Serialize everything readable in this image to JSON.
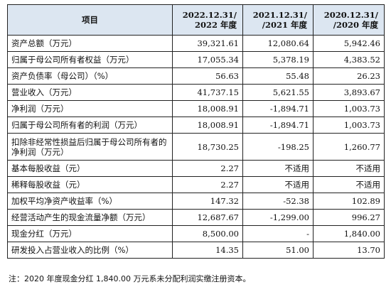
{
  "header": {
    "item": "项目",
    "col1_line1": "2022.12.31/",
    "col1_line2": "2022 年度",
    "col2_line1": "2021.12.31/",
    "col2_line2": "/2021 年度",
    "col3_line1": "2020.12.31/",
    "col3_line2": "/2020 年度"
  },
  "rows": [
    {
      "label": "资产总额（万元）",
      "v2022": "39,321.61",
      "v2021": "12,080.64",
      "v2020": "5,942.46"
    },
    {
      "label": "归属于母公司所有者权益（万元）",
      "v2022": "17,055.34",
      "v2021": "5,378.19",
      "v2020": "4,383.52"
    },
    {
      "label": "资产负债率（母公司）（%）",
      "v2022": "56.63",
      "v2021": "55.48",
      "v2020": "26.23"
    },
    {
      "label": "营业收入（万元）",
      "v2022": "41,737.15",
      "v2021": "5,621.55",
      "v2020": "3,893.67"
    },
    {
      "label": "净利润（万元）",
      "v2022": "18,008.91",
      "v2021": "-1,894.71",
      "v2020": "1,003.73"
    },
    {
      "label": "归属于母公司所有者的利润（万元）",
      "v2022": "18,008.91",
      "v2021": "-1,894.71",
      "v2020": "1,003.73"
    },
    {
      "label": "扣除非经常性损益后归属于母公司所有者的净利润（万元）",
      "v2022": "18,730.25",
      "v2021": "-198.25",
      "v2020": "1,260.77"
    },
    {
      "label": "基本每股收益（元）",
      "v2022": "2.27",
      "v2021": "不适用",
      "v2020": "不适用"
    },
    {
      "label": "稀释每股收益（元）",
      "v2022": "2.27",
      "v2021": "不适用",
      "v2020": "不适用"
    },
    {
      "label": "加权平均净资产收益率（%）",
      "v2022": "147.32",
      "v2021": "-52.38",
      "v2020": "102.89"
    },
    {
      "label": "经营活动产生的现金流量净额（万元）",
      "v2022": "12,687.67",
      "v2021": "-1,299.00",
      "v2020": "996.27"
    },
    {
      "label": "现金分红（万元）",
      "v2022": "8,500.00",
      "v2021": "-",
      "v2020": "1,840.00"
    },
    {
      "label": "研发投入占营业收入的比例（%）",
      "v2022": "14.35",
      "v2021": "51.00",
      "v2020": "13.70"
    }
  ],
  "note": "注：2020 年度现金分红 1,840.00 万元系未分配利润实缴注册资本。"
}
